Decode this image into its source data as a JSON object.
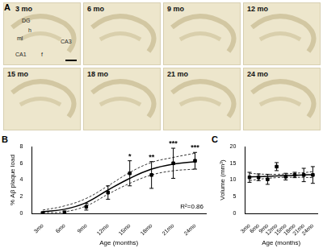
{
  "panel_a": {
    "label": "A",
    "images": [
      "3 mo",
      "6 mo",
      "9 mo",
      "12 mo",
      "15 mo",
      "18 mo",
      "21 mo",
      "24 mo"
    ],
    "region_labels": [
      "DG",
      "h",
      "ml",
      "CA1",
      "f",
      "CA3"
    ]
  },
  "chart_data": [
    {
      "panel_label": "B",
      "type": "line",
      "color": "#000000",
      "marker": "square",
      "grid": false,
      "categories": [
        "3mo",
        "6mo",
        "9mo",
        "12mo",
        "15mo",
        "18mo",
        "21mo",
        "24mo"
      ],
      "values": [
        0.05,
        0.1,
        0.8,
        2.5,
        4.8,
        4.6,
        6.0,
        6.3
      ],
      "errors": [
        0.1,
        0.2,
        0.4,
        0.8,
        1.5,
        1.6,
        1.8,
        1.0
      ],
      "fit": [
        0.2,
        0.5,
        1.3,
        2.8,
        4.2,
        5.3,
        5.9,
        6.2
      ],
      "fit_ci_upper": [
        0.4,
        0.9,
        1.8,
        3.3,
        4.9,
        6.1,
        6.7,
        7.2
      ],
      "fit_ci_lower": [
        0.1,
        0.2,
        0.9,
        2.3,
        3.6,
        4.6,
        5.1,
        5.3
      ],
      "fit_label": "R²=0.86",
      "annotations": [
        {
          "category": "15mo",
          "text": "*"
        },
        {
          "category": "18mo",
          "text": "**"
        },
        {
          "category": "21mo",
          "text": "***"
        },
        {
          "category": "24mo",
          "text": "***"
        }
      ],
      "xlabel": "Age (months)",
      "ylabel": "% Aβ plaque load",
      "ylim": [
        0,
        8
      ],
      "yticks": [
        0,
        2,
        4,
        6,
        8
      ]
    },
    {
      "panel_label": "C",
      "type": "line",
      "color": "#000000",
      "marker": "square",
      "grid": false,
      "categories": [
        "3mo",
        "6mo",
        "9mo",
        "12mo",
        "15mo",
        "18mo",
        "21mo",
        "24mo"
      ],
      "values": [
        10.8,
        10.8,
        10.2,
        14.0,
        11.0,
        11.5,
        11.5,
        11.5
      ],
      "errors": [
        1.5,
        1.0,
        1.5,
        1.2,
        1.0,
        0.8,
        2.0,
        2.5
      ],
      "fit": [
        10.9,
        11.0,
        11.1,
        11.2,
        11.3,
        11.4,
        11.5,
        11.6
      ],
      "fit_ci_upper": [
        12.0,
        11.8,
        11.7,
        11.7,
        11.8,
        12.0,
        12.2,
        12.5
      ],
      "fit_ci_lower": [
        9.8,
        10.2,
        10.5,
        10.7,
        10.8,
        10.8,
        10.8,
        10.7
      ],
      "xlabel": "Age (months)",
      "ylabel": "Volume (mm³)",
      "ylim": [
        0,
        20
      ],
      "yticks": [
        0,
        5,
        10,
        15,
        20
      ]
    }
  ]
}
